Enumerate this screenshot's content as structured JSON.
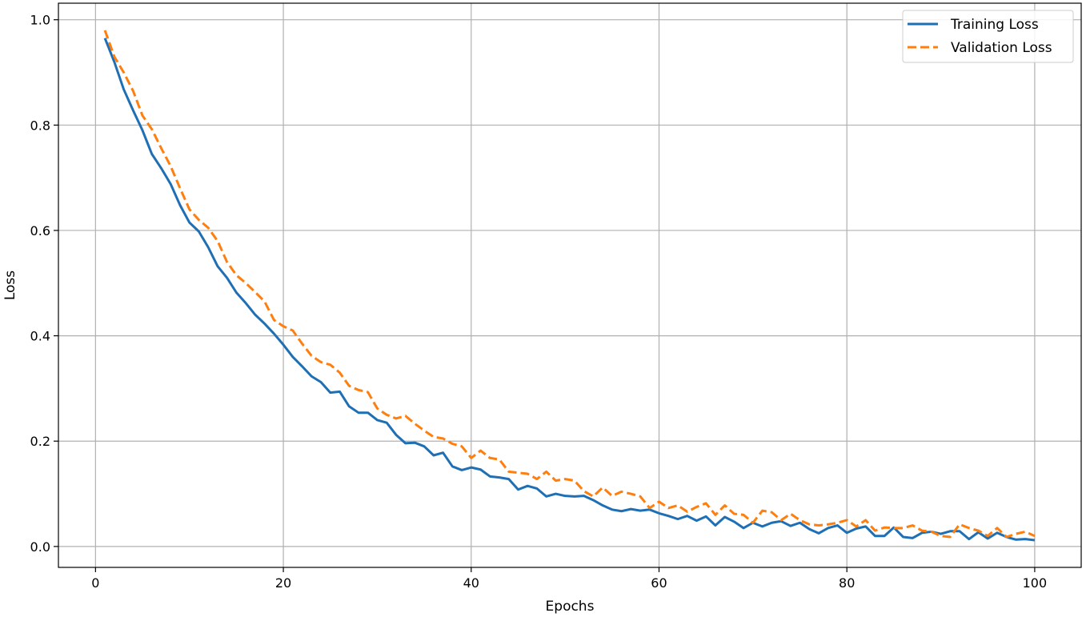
{
  "chart_data": {
    "type": "line",
    "title": "",
    "xlabel": "Epochs",
    "ylabel": "Loss",
    "xlim": [
      -3.95,
      104.95
    ],
    "ylim": [
      -0.0397,
      1.0314
    ],
    "xticks": [
      0,
      20,
      40,
      60,
      80,
      100
    ],
    "yticks": [
      0.0,
      0.2,
      0.4,
      0.6,
      0.8,
      1.0
    ],
    "xtick_labels": [
      "0",
      "20",
      "40",
      "60",
      "80",
      "100"
    ],
    "ytick_labels": [
      "0.0",
      "0.2",
      "0.4",
      "0.6",
      "0.8",
      "1.0"
    ],
    "grid": true,
    "legend_position": "top-right",
    "x": [
      1,
      2,
      3,
      4,
      5,
      6,
      7,
      8,
      9,
      10,
      11,
      12,
      13,
      14,
      15,
      16,
      17,
      18,
      19,
      20,
      21,
      22,
      23,
      24,
      25,
      26,
      27,
      28,
      29,
      30,
      31,
      32,
      33,
      34,
      35,
      36,
      37,
      38,
      39,
      40,
      41,
      42,
      43,
      44,
      45,
      46,
      47,
      48,
      49,
      50,
      51,
      52,
      53,
      54,
      55,
      56,
      57,
      58,
      59,
      60,
      61,
      62,
      63,
      64,
      65,
      66,
      67,
      68,
      69,
      70,
      71,
      72,
      73,
      74,
      75,
      76,
      77,
      78,
      79,
      80,
      81,
      82,
      83,
      84,
      85,
      86,
      87,
      88,
      89,
      90,
      91,
      92,
      93,
      94,
      95,
      96,
      97,
      98,
      99,
      100
    ],
    "series": [
      {
        "name": "Training Loss",
        "color": "#1f6fb5",
        "style": "solid",
        "values": [
          0.965,
          0.92,
          0.868,
          0.828,
          0.79,
          0.745,
          0.718,
          0.688,
          0.648,
          0.615,
          0.598,
          0.568,
          0.532,
          0.51,
          0.482,
          0.462,
          0.44,
          0.423,
          0.404,
          0.383,
          0.36,
          0.342,
          0.323,
          0.312,
          0.292,
          0.294,
          0.266,
          0.254,
          0.254,
          0.24,
          0.235,
          0.212,
          0.196,
          0.197,
          0.19,
          0.173,
          0.178,
          0.152,
          0.145,
          0.15,
          0.146,
          0.133,
          0.131,
          0.128,
          0.108,
          0.115,
          0.11,
          0.095,
          0.1,
          0.096,
          0.095,
          0.096,
          0.088,
          0.078,
          0.07,
          0.067,
          0.071,
          0.068,
          0.07,
          0.063,
          0.058,
          0.052,
          0.058,
          0.049,
          0.057,
          0.04,
          0.056,
          0.047,
          0.035,
          0.045,
          0.038,
          0.045,
          0.048,
          0.039,
          0.045,
          0.033,
          0.025,
          0.035,
          0.04,
          0.026,
          0.034,
          0.038,
          0.02,
          0.02,
          0.036,
          0.018,
          0.016,
          0.026,
          0.028,
          0.024,
          0.029,
          0.029,
          0.014,
          0.027,
          0.015,
          0.026,
          0.018,
          0.013,
          0.014,
          0.012
        ]
      },
      {
        "name": "Validation Loss",
        "color": "#ff7f0e",
        "style": "dashed",
        "values": [
          0.98,
          0.93,
          0.9,
          0.865,
          0.818,
          0.792,
          0.756,
          0.722,
          0.68,
          0.64,
          0.62,
          0.605,
          0.58,
          0.54,
          0.515,
          0.5,
          0.483,
          0.465,
          0.43,
          0.418,
          0.41,
          0.385,
          0.362,
          0.35,
          0.345,
          0.33,
          0.305,
          0.297,
          0.293,
          0.262,
          0.25,
          0.243,
          0.248,
          0.233,
          0.22,
          0.208,
          0.205,
          0.195,
          0.19,
          0.168,
          0.182,
          0.168,
          0.165,
          0.142,
          0.14,
          0.138,
          0.128,
          0.142,
          0.125,
          0.128,
          0.125,
          0.105,
          0.095,
          0.112,
          0.096,
          0.104,
          0.1,
          0.095,
          0.073,
          0.085,
          0.073,
          0.078,
          0.066,
          0.075,
          0.082,
          0.06,
          0.078,
          0.062,
          0.06,
          0.045,
          0.068,
          0.065,
          0.05,
          0.062,
          0.05,
          0.042,
          0.04,
          0.042,
          0.045,
          0.05,
          0.038,
          0.05,
          0.03,
          0.036,
          0.035,
          0.035,
          0.04,
          0.03,
          0.028,
          0.02,
          0.018,
          0.042,
          0.035,
          0.03,
          0.02,
          0.035,
          0.018,
          0.024,
          0.028,
          0.02
        ]
      }
    ]
  }
}
